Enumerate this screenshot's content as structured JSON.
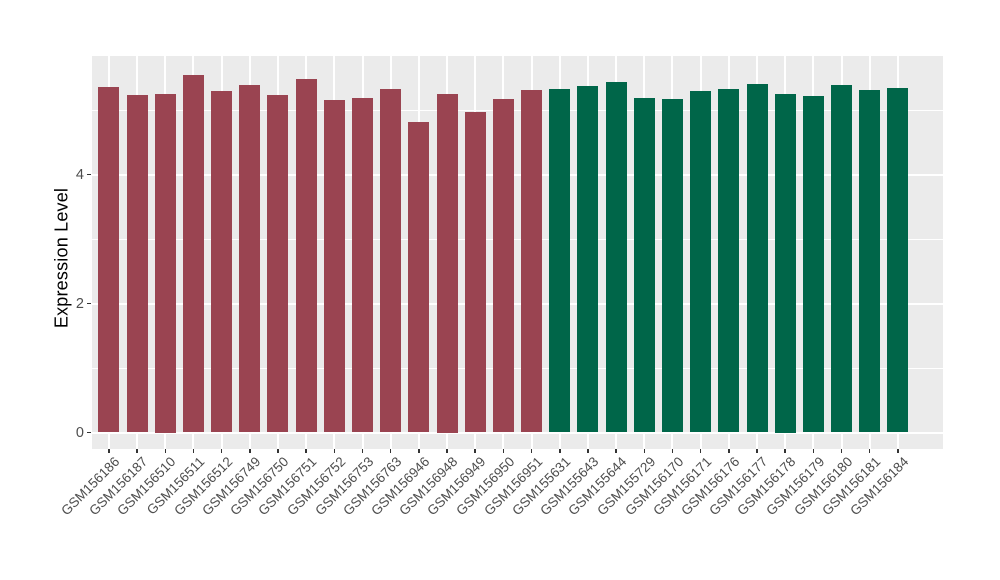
{
  "figure": {
    "background": "#ffffff",
    "panel_background": "#ebebeb",
    "gridline_color": "#ffffff",
    "tick_mark_color": "#333333",
    "axis_text_color": "#4d4d4d",
    "axis_title_color": "#000000"
  },
  "chart_data": {
    "type": "bar",
    "title": "",
    "xlabel": "",
    "ylabel": "Expression Level",
    "ylim": [
      0,
      5.84
    ],
    "yticks": [
      0,
      2,
      4
    ],
    "yticks_minor": [
      1,
      3,
      5
    ],
    "grid": "on",
    "legend": "none",
    "categories": [
      "GSM156186",
      "GSM156187",
      "GSM156510",
      "GSM156511",
      "GSM156512",
      "GSM156749",
      "GSM156750",
      "GSM156751",
      "GSM156752",
      "GSM156753",
      "GSM156763",
      "GSM156946",
      "GSM156948",
      "GSM156949",
      "GSM156950",
      "GSM156951",
      "GSM155631",
      "GSM155643",
      "GSM155644",
      "GSM155729",
      "GSM156170",
      "GSM156171",
      "GSM156176",
      "GSM156177",
      "GSM156178",
      "GSM156179",
      "GSM156180",
      "GSM156181",
      "GSM156184"
    ],
    "values": [
      5.35,
      5.24,
      5.25,
      5.55,
      5.29,
      5.38,
      5.23,
      5.48,
      5.15,
      5.19,
      5.32,
      4.81,
      5.25,
      4.97,
      5.17,
      5.31,
      5.33,
      5.37,
      5.43,
      5.19,
      5.17,
      5.3,
      5.33,
      5.4,
      5.25,
      5.22,
      5.39,
      5.31,
      5.34
    ],
    "groups": [
      {
        "name": "group-1",
        "color": "#9a4451",
        "start_index": 0,
        "count": 16
      },
      {
        "name": "group-2",
        "color": "#006649",
        "start_index": 16,
        "count": 13
      }
    ]
  }
}
